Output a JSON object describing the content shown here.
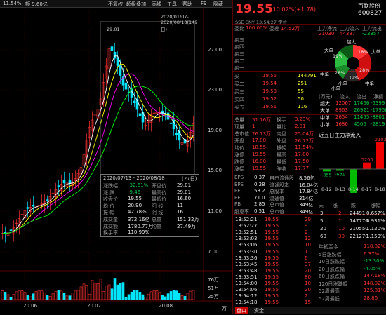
{
  "header_left": {
    "change_pct": "11.54%",
    "volume": "额 9.60亿"
  },
  "toolbar": [
    "不复权",
    "超级叠加",
    "画线",
    "工具",
    "帮助",
    "F9",
    "隐藏"
  ],
  "chart": {
    "date_range": "2020/01/07-2020/08/18(149日)",
    "high_marker": "29.01",
    "y_ticks": [
      "27.00",
      "23.00",
      "19.00",
      "15.00",
      "11.00",
      "7.00"
    ],
    "x_ticks": [
      "20.06",
      "20.07",
      "20.08"
    ],
    "vol_ticks": [
      "76万",
      "51万",
      "25万"
    ],
    "volume_unit": "万"
  },
  "popup": {
    "title": "2020/07/13 - 2020/08/18",
    "days": "(27日)",
    "rows": [
      {
        "l1": "涨跌幅",
        "v1": "-32.61%",
        "l2": "开盘价",
        "v2": "29.01"
      },
      {
        "l1": "涨  跌",
        "v1": "-9.46",
        "l2": "最高价",
        "v2": "29.01"
      },
      {
        "l1": "收盘价",
        "v1": "19.55",
        "l2": "最低价",
        "v2": "16.60"
      },
      {
        "l1": "均  价",
        "v1": "20.90",
        "l2": "阳  线",
        "v2": "11"
      },
      {
        "l1": "振  幅",
        "v1": "42.78%",
        "l2": "阴  线",
        "v2": "16"
      },
      {
        "l1": "成交量",
        "v1": "372.16亿",
        "l2": "总量",
        "v2": "151.32万"
      },
      {
        "l1": "成交额",
        "v1": "1780.77万",
        "l2": "均量",
        "v2": "27.49万"
      },
      {
        "l1": "换手率",
        "v1": "110.99%",
        "l2": "",
        "v2": ""
      }
    ]
  },
  "quote": {
    "price": "19.55",
    "change": "+10.02%(+1.78)",
    "name": "百联股份",
    "code": "600827",
    "market": "SSE  CNY  13:54:27  定位",
    "weibi_label": "委比",
    "weibi": "100.00%",
    "weicha_label": "委差",
    "weicha": "14.52万",
    "flow_labels": [
      "主力净流",
      "主力流入",
      "主力流出"
    ],
    "flow_values": [
      "21030",
      "44387",
      "-23357"
    ]
  },
  "asks": [
    {
      "label": "卖五",
      "price": "",
      "vol": ""
    },
    {
      "label": "卖四",
      "price": "",
      "vol": ""
    },
    {
      "label": "卖三",
      "price": "",
      "vol": ""
    },
    {
      "label": "卖二",
      "price": "",
      "vol": ""
    },
    {
      "label": "卖一",
      "price": "",
      "vol": ""
    }
  ],
  "bids": [
    {
      "label": "买一",
      "price": "19.55",
      "vol": "144791"
    },
    {
      "label": "买二",
      "price": "19.54",
      "vol": "251"
    },
    {
      "label": "买三",
      "price": "19.53",
      "vol": "55"
    },
    {
      "label": "买四",
      "price": "19.52",
      "vol": "50"
    },
    {
      "label": "买五",
      "price": "19.51",
      "vol": "116"
    }
  ],
  "stats": [
    {
      "l1": "总量",
      "v1": "51.76万",
      "l2": "换手",
      "v2": "3.23%"
    },
    {
      "l1": "现量",
      "v1": "1",
      "l2": "量比",
      "v2": "2.01"
    },
    {
      "l1": "总市值",
      "v1": "26.73万",
      "l2": "内盘",
      "v2": "25.04万"
    },
    {
      "l1": "开盘",
      "v1": "17.88",
      "l2": "外盘",
      "v2": "26.72万"
    },
    {
      "l1": "均价",
      "v1": "18.55",
      "l2": "振幅",
      "v2": "11.54%"
    },
    {
      "l1": "涨停",
      "v1": "19.55",
      "l2": "最高",
      "v2": "17.80"
    },
    {
      "l1": "跌停",
      "v1": "16.00",
      "l2": "最低",
      "v2": "17.50"
    },
    {
      "l1": "涨幅",
      "v1": "19.55",
      "l2": "昨收",
      "v2": "17.77"
    }
  ],
  "fundamentals": [
    {
      "l1": "EPS",
      "v1": "0.37",
      "l2": "自由流通股",
      "v2": "8.56亿"
    },
    {
      "l1": "EPS",
      "v1": "0.28",
      "l2": "流通股本",
      "v2": "16.04亿"
    },
    {
      "l1": "PE",
      "v1": "53.2",
      "l2": "总股本",
      "v2": "17.84亿"
    },
    {
      "l1": "PE",
      "v1": "71.0",
      "l2": "流通值",
      "v2": "314亿"
    },
    {
      "l1": "PB",
      "v1": "2.85",
      "l2": "总市值",
      "v2": "349亿"
    },
    {
      "l1": "股息率",
      "v1": "0.51",
      "l2": "总市值",
      "v2": "349亿"
    }
  ],
  "flow_pie": {
    "labels": [
      "超大",
      "大单",
      "中单",
      "小单",
      "中单",
      "小单",
      "大单",
      "超大"
    ],
    "pcts": [
      "18%",
      "28%",
      "12%",
      "28%",
      "19%"
    ]
  },
  "flow_table": {
    "headers": [
      "(万元)",
      "流入",
      "流出",
      "净额"
    ],
    "rows": [
      {
        "name": "超大",
        "in": "12067",
        "out": "17466",
        "net": "-5399"
      },
      {
        "name": "大单",
        "in": "8963",
        "out": "26921",
        "net": "-17958"
      },
      {
        "name": "中单",
        "in": "2654",
        "out": "11455",
        "net": "-8801"
      },
      {
        "name": "小单",
        "in": "1686",
        "out": "4506",
        "net": "-2819"
      }
    ]
  },
  "five_day": {
    "title": "近五日主力净流入",
    "values": [
      -855,
      -631,
      -8540,
      5200,
      21030
    ],
    "value_labels": [
      "-855",
      "-631",
      "-8540",
      "5200",
      "21030"
    ],
    "dates": [
      "8-12",
      "8-13",
      "8-14",
      "8-17",
      "8-18"
    ]
  },
  "periods": {
    "headers": [
      "天",
      "涨",
      "跌",
      "涨幅"
    ],
    "rows": [
      {
        "d": "3",
        "up": "2",
        "down": "24491",
        "pct": "0.657%"
      },
      {
        "d": "5",
        "up": "1",
        "down": "147770",
        "pct": "0.931%"
      },
      {
        "d": "20",
        "up": "10",
        "down": "210550",
        "pct": "1.120%"
      },
      {
        "d": "60",
        "up": "30",
        "down": "221270",
        "pct": "1.159%"
      }
    ]
  },
  "ticks": [
    {
      "t": "13:52:21",
      "p": "19.55",
      "v": "29"
    },
    {
      "t": "13:52:27",
      "p": "19.55",
      "v": "9"
    },
    {
      "t": "13:52:51",
      "p": "19.55",
      "v": "2"
    },
    {
      "t": "13:53:03",
      "p": "19.55",
      "v": "12"
    },
    {
      "t": "13:53:06",
      "p": "19.55",
      "v": "10"
    },
    {
      "t": "13:53:30",
      "p": "19.55",
      "v": "1"
    },
    {
      "t": "13:53:36",
      "p": "19.55",
      "v": "6"
    },
    {
      "t": "13:53:45",
      "p": "19.55",
      "v": "37"
    },
    {
      "t": "13:53:48",
      "p": "19.55",
      "v": "20"
    },
    {
      "t": "13:53:51",
      "p": "19.55",
      "v": "80"
    },
    {
      "t": "13:54:00",
      "p": "19.55",
      "v": "10"
    },
    {
      "t": "13:54:06",
      "p": "19.55",
      "v": "20"
    },
    {
      "t": "13:54:12",
      "p": "19.55",
      "v": "2"
    },
    {
      "t": "13:54:18",
      "p": "19.55",
      "v": "15"
    }
  ],
  "perf": [
    {
      "l": "年初至今",
      "v": "118.82%"
    },
    {
      "l": "5日涨跌幅",
      "v": "6.37%"
    },
    {
      "l": "10日涨跌幅",
      "v": "-13.30%"
    },
    {
      "l": "20日涨跌幅",
      "v": "-4.05%"
    },
    {
      "l": "60日涨跌幅",
      "v": "147.18%"
    },
    {
      "l": "120日涨跌幅",
      "v": "148.02%"
    },
    {
      "l": "52周最高",
      "v": "125.81%"
    },
    {
      "l": "52周最低",
      "v": "28.86"
    }
  ],
  "tabs": [
    "盘口",
    "资金"
  ]
}
